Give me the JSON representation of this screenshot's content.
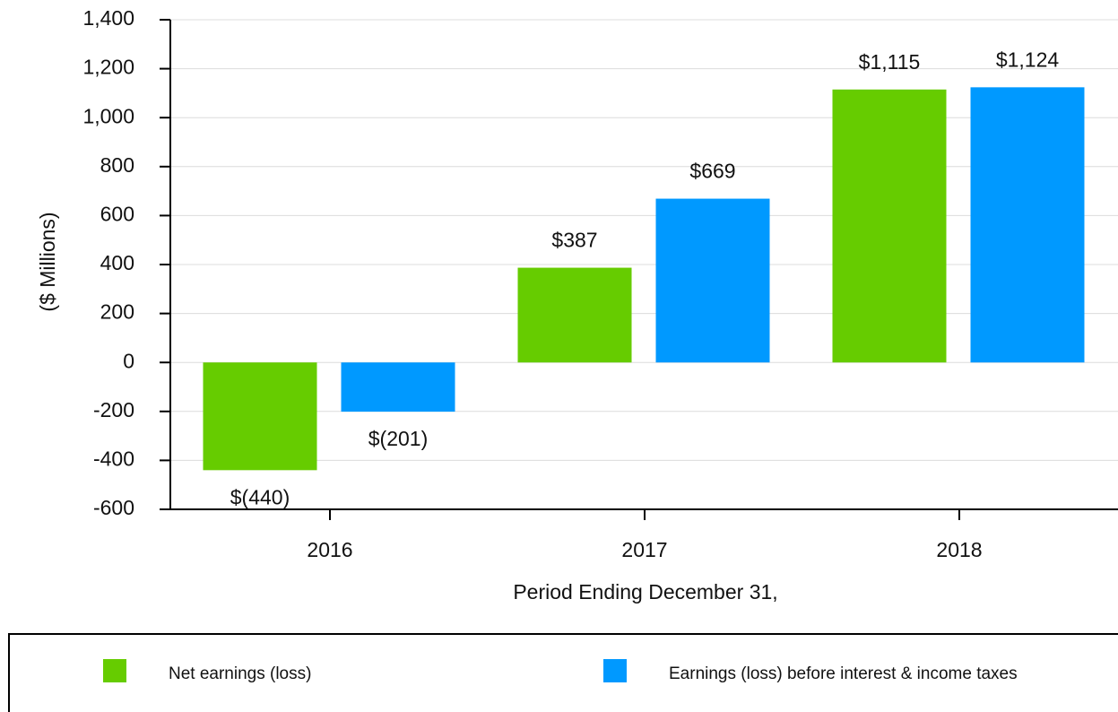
{
  "chart_data": {
    "type": "bar",
    "ylabel": "($ Millions)",
    "xlabel": "Period Ending December 31,",
    "categories": [
      "2016",
      "2017",
      "2018"
    ],
    "series": [
      {
        "name": "Net earnings (loss)",
        "color": "#66cc00",
        "values": [
          -440,
          387,
          1115
        ],
        "value_labels": [
          "$(440)",
          "$387",
          "$1,115"
        ]
      },
      {
        "name": "Earnings (loss) before interest & income taxes",
        "color": "#0099ff",
        "values": [
          -201,
          669,
          1124
        ],
        "value_labels": [
          "$(201)",
          "$669",
          "$1,124"
        ]
      }
    ],
    "ylim": [
      -600,
      1400
    ],
    "yticks": [
      -600,
      -400,
      -200,
      0,
      200,
      400,
      600,
      800,
      {
        "value": 1000,
        "label": "1,000"
      },
      {
        "value": 1200,
        "label": "1,200"
      },
      {
        "value": 1400,
        "label": "1,400"
      }
    ],
    "grid": true,
    "legend": "bottom"
  }
}
